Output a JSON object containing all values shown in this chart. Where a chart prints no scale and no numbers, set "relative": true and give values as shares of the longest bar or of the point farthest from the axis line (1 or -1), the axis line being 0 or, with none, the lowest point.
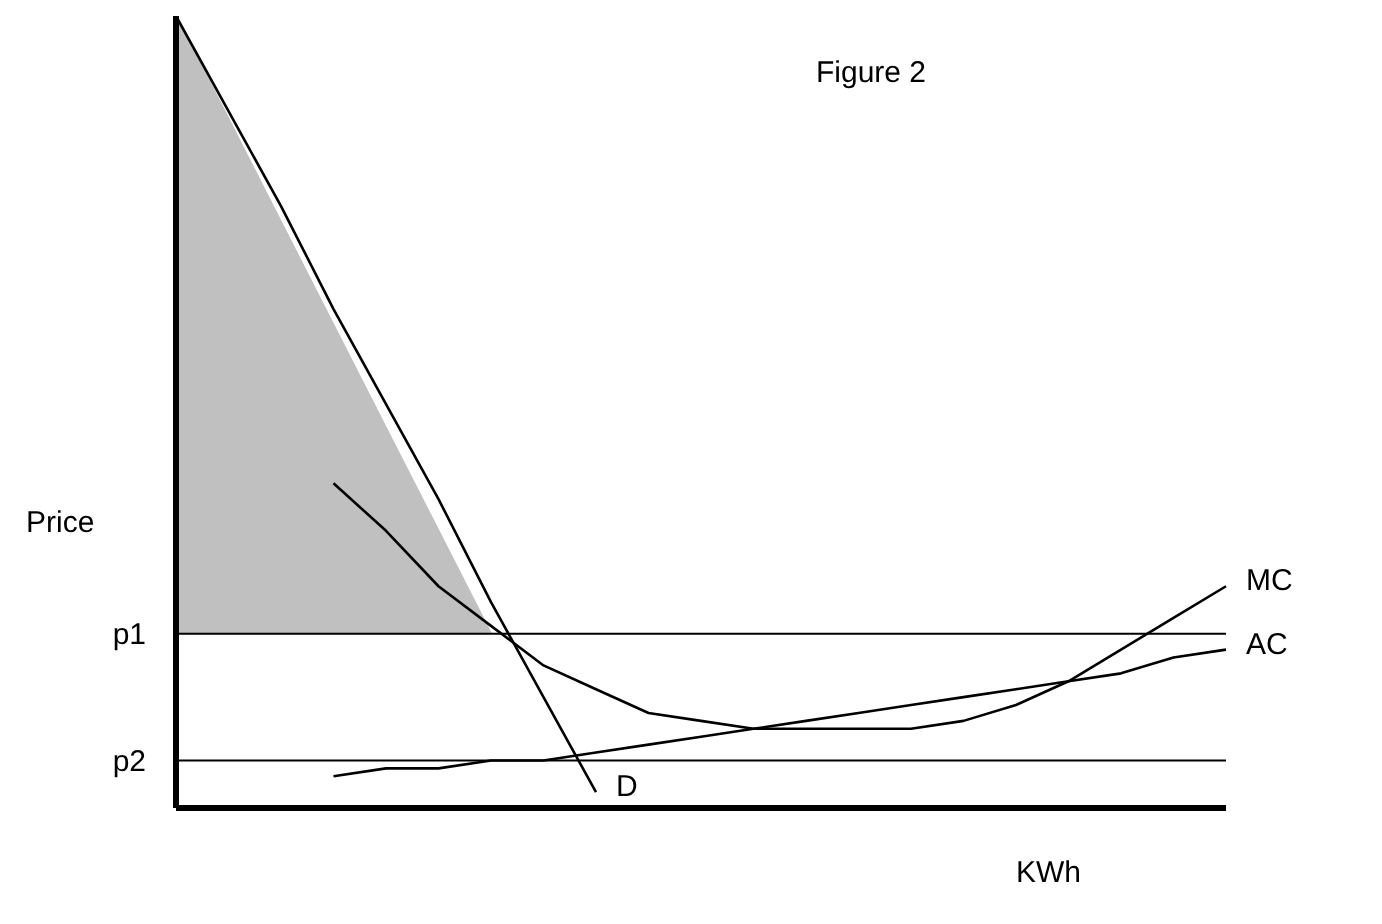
{
  "chart_data": {
    "type": "line",
    "title": "Figure 2",
    "xlabel": "KWh",
    "ylabel": "Price",
    "relative": true,
    "legend": false,
    "grid": false,
    "marker": "none",
    "categories": [
      null,
      null,
      null,
      null,
      null,
      null,
      null,
      null,
      null,
      null,
      null,
      null,
      null,
      null,
      null,
      null,
      null,
      null,
      null,
      null,
      null
    ],
    "series": [
      {
        "type": "area",
        "color": "#c0c0c0",
        "values": [
          1,
          0.87,
          0.74,
          0.61,
          0.48,
          0.35,
          0.22,
          null,
          null,
          null,
          null,
          null,
          null,
          null,
          null,
          null,
          null,
          null,
          null,
          null,
          null
        ]
      },
      {
        "name": "D",
        "color": "#000000",
        "values": [
          1,
          0.88,
          0.76,
          0.63,
          0.51,
          0.39,
          0.26,
          0.14,
          0.02,
          null,
          null,
          null,
          null,
          null,
          null,
          null,
          null,
          null,
          null,
          null,
          null
        ]
      },
      {
        "name": "MC",
        "color": "#000000",
        "values": [
          null,
          null,
          null,
          0.41,
          0.35,
          0.28,
          0.23,
          0.18,
          0.15,
          0.12,
          0.11,
          0.1,
          0.1,
          0.1,
          0.1,
          0.11,
          0.13,
          0.16,
          0.2,
          0.24,
          0.28
        ]
      },
      {
        "name": "AC",
        "color": "#000000",
        "values": [
          null,
          null,
          null,
          0.04,
          0.05,
          0.05,
          0.06,
          0.06,
          0.07,
          0.08,
          0.09,
          0.1,
          0.11,
          0.12,
          0.13,
          0.14,
          0.15,
          0.16,
          0.17,
          0.19,
          0.2
        ]
      }
    ],
    "ref_lines": [
      {
        "axis": "y",
        "value": 0.22,
        "label": "p1"
      },
      {
        "axis": "y",
        "value": 0.06,
        "label": "p2"
      }
    ]
  }
}
